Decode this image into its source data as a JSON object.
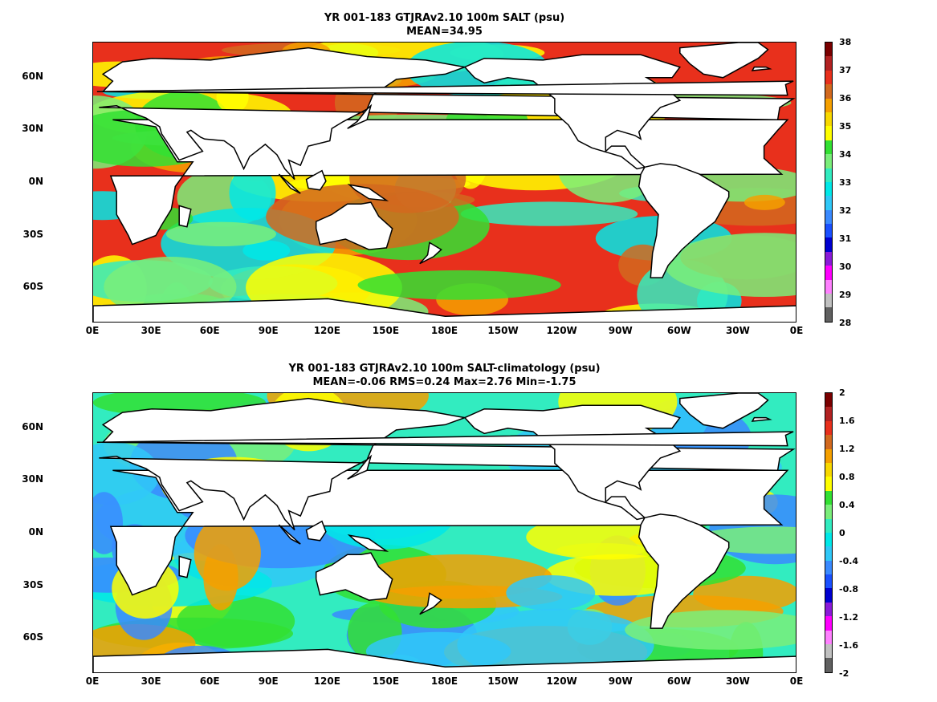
{
  "panels": [
    {
      "title_line1": "YR 001-183 GTJRAv2.10 100m SALT (psu)",
      "title_line2": "MEAN=34.95",
      "colorbar_labels": [
        "38",
        "37",
        "36",
        "35",
        "34",
        "33",
        "32",
        "31",
        "30",
        "29",
        "28"
      ],
      "colorbar_colors": [
        "#7a0000",
        "#b22222",
        "#e8301c",
        "#d2691e",
        "#f5a000",
        "#f8d800",
        "#ffff00",
        "#32e032",
        "#7aee7a",
        "#32ecc0",
        "#00e8e8",
        "#30c8f8",
        "#3a8aff",
        "#1a50ff",
        "#0000d0",
        "#8a1ad8",
        "#ff00ff",
        "#ff80ff",
        "#c0c0c0",
        "#606060"
      ],
      "map_palette": [
        "#e8301c",
        "#d2691e",
        "#f5a000",
        "#ffff00",
        "#32e032",
        "#7aee7a",
        "#32ecc0",
        "#00e8e8"
      ]
    },
    {
      "title_line1": "YR 001-183 GTJRAv2.10 100m SALT-climatology (psu)",
      "title_line2": "MEAN=-0.06   RMS=0.24   Max=2.76   Min=-1.75",
      "colorbar_labels": [
        "2",
        "1.6",
        "1.2",
        "0.8",
        "0.4",
        "0",
        "-0.4",
        "-0.8",
        "-1.2",
        "-1.6",
        "-2"
      ],
      "colorbar_colors": [
        "#7a0000",
        "#b22222",
        "#e8301c",
        "#d2691e",
        "#f5a000",
        "#f8d800",
        "#ffff00",
        "#32e032",
        "#7aee7a",
        "#32ecc0",
        "#00e8e8",
        "#30c8f8",
        "#3a8aff",
        "#1a50ff",
        "#0000d0",
        "#8a1ad8",
        "#ff00ff",
        "#ff80ff",
        "#c0c0c0",
        "#606060"
      ],
      "map_palette": [
        "#32ecc0",
        "#00e8e8",
        "#7aee7a",
        "#30c8f8",
        "#32e032",
        "#3a8aff",
        "#ffff00",
        "#f5a000"
      ]
    }
  ],
  "latitude_labels": [
    "60N",
    "30N",
    "0N",
    "30S",
    "60S"
  ],
  "longitude_labels": [
    "0E",
    "30E",
    "60E",
    "90E",
    "120E",
    "150E",
    "180E",
    "150W",
    "120W",
    "90W",
    "60W",
    "30W",
    "0E"
  ],
  "land_color": "#ffffff",
  "coast_color": "#000000"
}
